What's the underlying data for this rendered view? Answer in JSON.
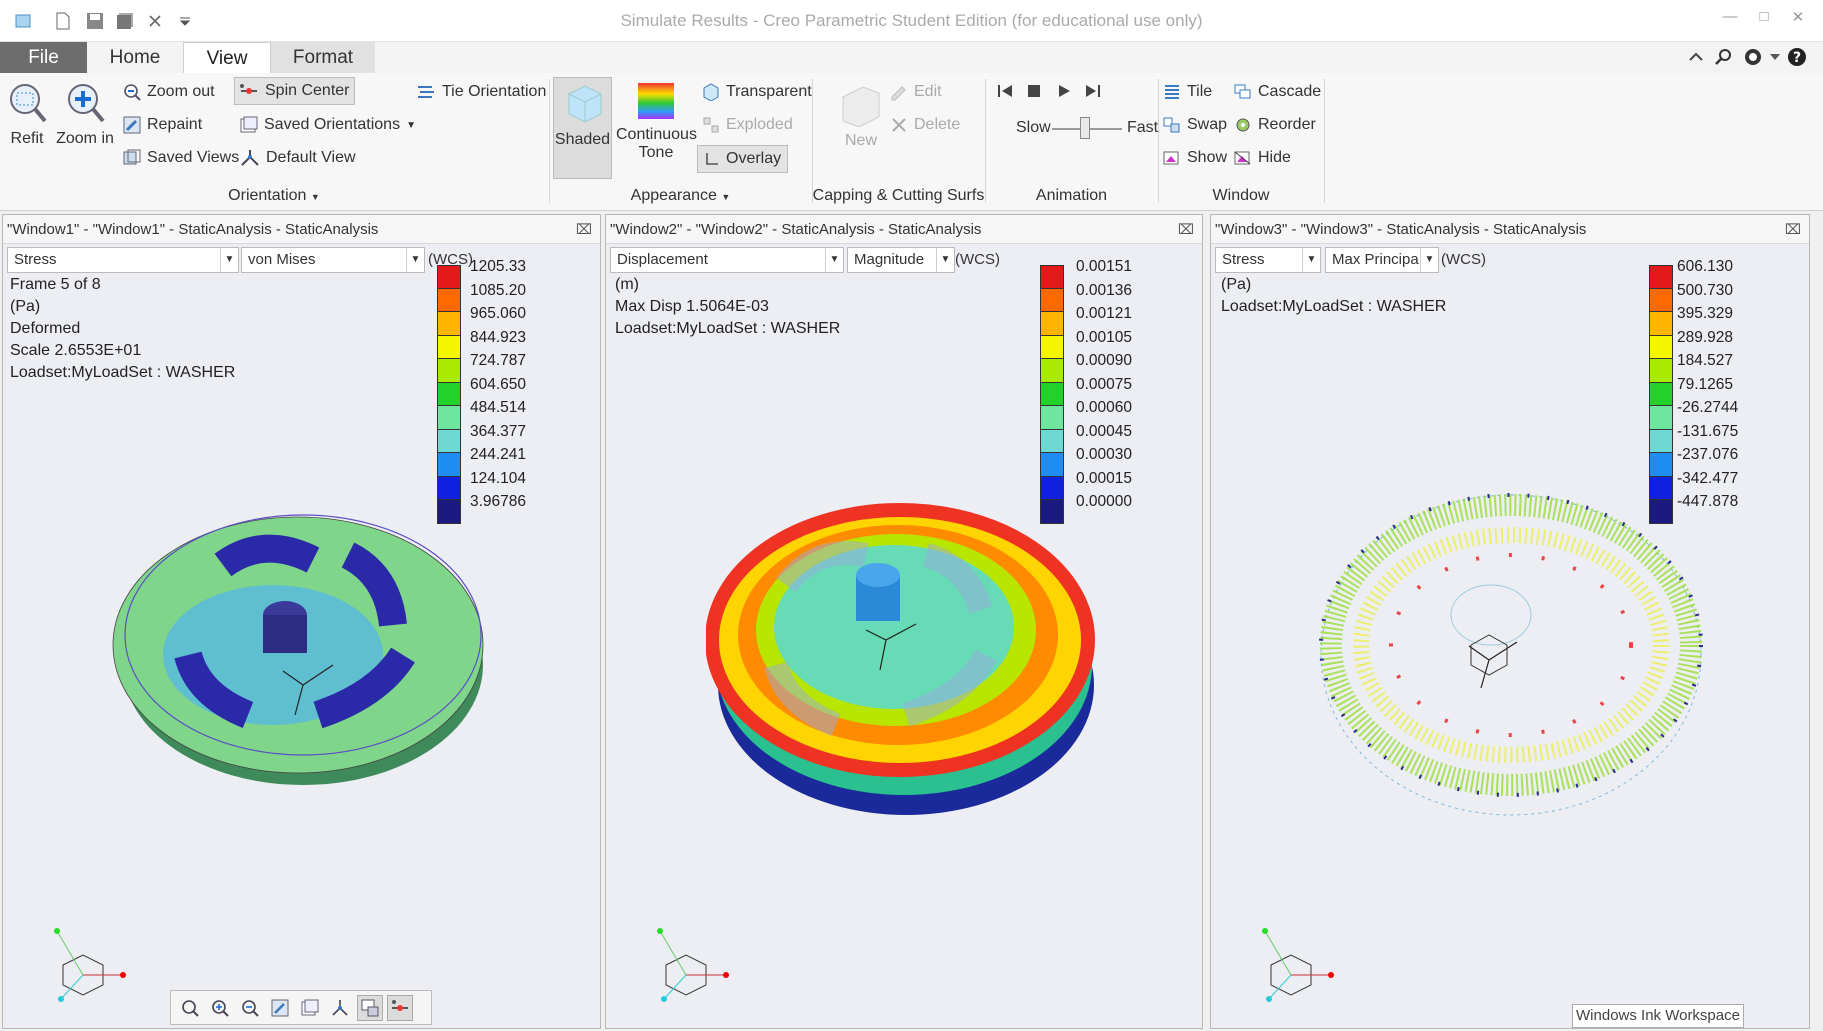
{
  "window": {
    "title": "Simulate Results - Creo Parametric Student Edition (for educational use only)"
  },
  "tabs": [
    {
      "label": "File"
    },
    {
      "label": "Home"
    },
    {
      "label": "View"
    },
    {
      "label": "Format"
    }
  ],
  "ribbon": {
    "orientation": {
      "refit": "Refit",
      "zoom_in": "Zoom in",
      "zoom_out": "Zoom out",
      "repaint": "Repaint",
      "saved_views": "Saved Views",
      "spin_center": "Spin Center",
      "saved_orientations": "Saved Orientations",
      "default_view": "Default View",
      "tie_orientation": "Tie Orientation",
      "group": "Orientation"
    },
    "appearance": {
      "shaded": "Shaded",
      "continuous": "Continuous",
      "tone": "Tone",
      "transparent": "Transparent",
      "exploded": "Exploded",
      "overlay": "Overlay",
      "group": "Appearance"
    },
    "capping": {
      "new": "New",
      "edit": "Edit",
      "delete": "Delete",
      "group": "Capping & Cutting Surfs"
    },
    "animation": {
      "slow": "Slow",
      "fast": "Fast",
      "group": "Animation"
    },
    "window": {
      "tile": "Tile",
      "swap": "Swap",
      "show": "Show",
      "cascade": "Cascade",
      "reorder": "Reorder",
      "hide": "Hide",
      "group": "Window"
    }
  },
  "panes": [
    {
      "header": "\"Window1\" - \"Window1\" - StaticAnalysis - StaticAnalysis",
      "quantity": "Stress",
      "component": "von Mises",
      "wcs": "(WCS)",
      "info": [
        "Frame 5 of 8",
        "(Pa)",
        "Deformed",
        "Scale  2.6553E+01",
        "Loadset:MyLoadSet :  WASHER"
      ],
      "legend": [
        "1205.33",
        "1085.20",
        "965.060",
        "844.923",
        "724.787",
        "604.650",
        "484.514",
        "364.377",
        "244.241",
        "124.104",
        "3.96786"
      ]
    },
    {
      "header": "\"Window2\" - \"Window2\" - StaticAnalysis - StaticAnalysis",
      "quantity": "Displacement",
      "component": "Magnitude",
      "wcs": "(WCS)",
      "info": [
        "(m)",
        "Max Disp  1.5064E-03",
        "Loadset:MyLoadSet :  WASHER"
      ],
      "legend": [
        "0.00151",
        "0.00136",
        "0.00121",
        "0.00105",
        "0.00090",
        "0.00075",
        "0.00060",
        "0.00045",
        "0.00030",
        "0.00015",
        "0.00000"
      ]
    },
    {
      "header": "\"Window3\" - \"Window3\" - StaticAnalysis - StaticAnalysis",
      "quantity": "Stress",
      "component": "Max Principa",
      "wcs": "(WCS)",
      "info": [
        "(Pa)",
        "Loadset:MyLoadSet :  WASHER"
      ],
      "legend": [
        "606.130",
        "500.730",
        "395.329",
        "289.928",
        "184.527",
        "79.1265",
        "-26.2744",
        "-131.675",
        "-237.076",
        "-342.477",
        "-447.878"
      ]
    }
  ],
  "legend_colors": [
    "#e41a1a",
    "#ff6a00",
    "#ffb400",
    "#f5f500",
    "#a8ea00",
    "#22d22a",
    "#6fe6a0",
    "#6ed8d2",
    "#1e8cf0",
    "#1020e0",
    "#1a1a80"
  ],
  "taskbar": {
    "ink": "Windows Ink Workspace"
  }
}
